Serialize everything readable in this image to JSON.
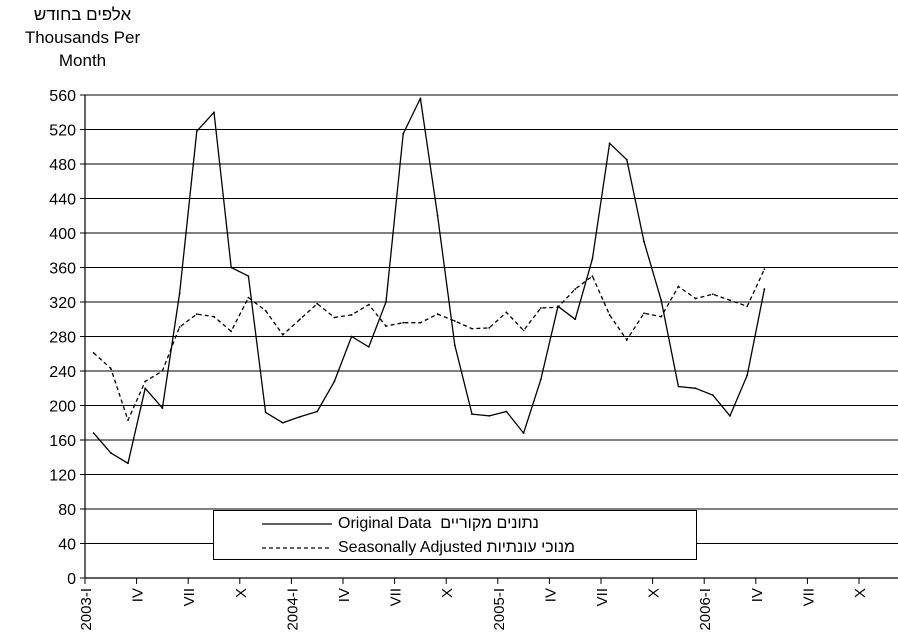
{
  "chart_data": {
    "type": "line",
    "ylabel_lines": [
      "אלפים בחודש",
      "Thousands Per",
      "Month"
    ],
    "ylim": [
      0,
      560
    ],
    "yticks": [
      0,
      40,
      80,
      120,
      160,
      200,
      240,
      280,
      320,
      360,
      400,
      440,
      480,
      520,
      560
    ],
    "grid": true,
    "x_tick_labels": [
      "2003-I",
      "IV",
      "VII",
      "X",
      "2004-I",
      "IV",
      "VII",
      "X",
      "2005-I",
      "IV",
      "VII",
      "X",
      "2006-I",
      "IV",
      "VII",
      "X"
    ],
    "x_months": [
      "2003-01",
      "2003-02",
      "2003-03",
      "2003-04",
      "2003-05",
      "2003-06",
      "2003-07",
      "2003-08",
      "2003-09",
      "2003-10",
      "2003-11",
      "2003-12",
      "2004-01",
      "2004-02",
      "2004-03",
      "2004-04",
      "2004-05",
      "2004-06",
      "2004-07",
      "2004-08",
      "2004-09",
      "2004-10",
      "2004-11",
      "2004-12",
      "2005-01",
      "2005-02",
      "2005-03",
      "2005-04",
      "2005-05",
      "2005-06",
      "2005-07",
      "2005-08",
      "2005-09",
      "2005-10",
      "2005-11",
      "2005-12",
      "2006-01",
      "2006-02",
      "2006-03",
      "2006-04"
    ],
    "series": [
      {
        "name": "Original Data  נתונים מקוריים",
        "style": "solid",
        "values": [
          168,
          145,
          133,
          220,
          197,
          330,
          518,
          540,
          360,
          350,
          192,
          180,
          187,
          193,
          228,
          280,
          268,
          320,
          515,
          556,
          420,
          270,
          190,
          188,
          193,
          168,
          230,
          315,
          300,
          370,
          504,
          485,
          390,
          322,
          222,
          220,
          212,
          188,
          235,
          335
        ]
      },
      {
        "name": "Seasonally Adjusted מנוכי עונתיות",
        "style": "dashed",
        "values": [
          261,
          243,
          183,
          228,
          240,
          291,
          306,
          303,
          286,
          325,
          310,
          282,
          300,
          318,
          302,
          305,
          317,
          292,
          296,
          296,
          306,
          298,
          289,
          290,
          308,
          287,
          313,
          314,
          335,
          350,
          305,
          276,
          307,
          303,
          338,
          324,
          329,
          322,
          315,
          358
        ]
      }
    ],
    "legend_placement": "bottom-center"
  }
}
